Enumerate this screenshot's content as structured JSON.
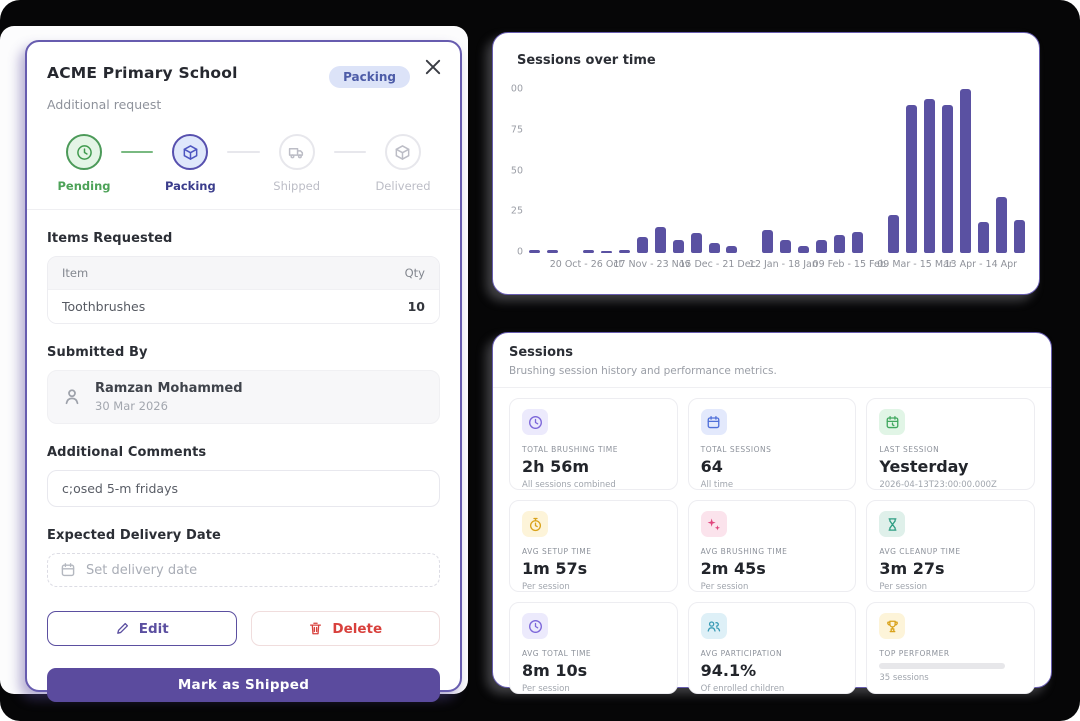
{
  "modal": {
    "title": "ACME Primary School",
    "subtitle": "Additional request",
    "status_badge": "Packing",
    "stepper": [
      {
        "label": "Pending",
        "state": "done",
        "icon": "clock-icon"
      },
      {
        "label": "Packing",
        "state": "active",
        "icon": "package-icon"
      },
      {
        "label": "Shipped",
        "state": "pending",
        "icon": "truck-icon"
      },
      {
        "label": "Delivered",
        "state": "pending",
        "icon": "package-icon"
      }
    ],
    "items_requested": {
      "heading": "Items Requested",
      "columns": [
        "Item",
        "Qty"
      ],
      "rows": [
        {
          "item": "Toothbrushes",
          "qty": "10"
        }
      ]
    },
    "submitted_by": {
      "heading": "Submitted By",
      "name": "Ramzan Mohammed",
      "date": "30 Mar 2026"
    },
    "additional_comments": {
      "heading": "Additional Comments",
      "value": "c;osed 5-m fridays"
    },
    "expected_delivery": {
      "heading": "Expected Delivery Date",
      "placeholder": "Set delivery date"
    },
    "actions": {
      "edit": "Edit",
      "delete": "Delete",
      "primary": "Mark as Shipped"
    }
  },
  "chart_data": {
    "type": "bar",
    "title": "Sessions over time",
    "ylim": [
      0,
      100
    ],
    "y_ticks": [
      "00",
      "75",
      "50",
      "25",
      "0"
    ],
    "x_tick_labels": [
      "20 Oct - 26 Oct",
      "17 Nov - 23 Nov",
      "15 Dec - 21 Dec",
      "12 Jan - 18 Jan",
      "09 Feb - 15 Feb",
      "09 Mar - 15 Mar",
      "13 Apr - 14 Apr"
    ],
    "values": [
      2,
      2,
      0,
      2,
      1,
      2,
      10,
      16,
      8,
      12,
      6,
      4,
      0,
      14,
      8,
      4,
      8,
      11,
      13,
      0,
      23,
      90,
      94,
      90,
      100,
      19,
      34,
      20
    ],
    "bar_color": "#5a51a2",
    "grid": false,
    "legend": "none"
  },
  "sessions_panel": {
    "title": "Sessions",
    "subtitle": "Brushing session history and performance metrics.",
    "metrics": [
      {
        "icon": "clock-icon",
        "chip_bg": "#eceafc",
        "chip_fg": "#7c66d9",
        "label": "TOTAL BRUSHING TIME",
        "value": "2h 56m",
        "note": "All sessions combined"
      },
      {
        "icon": "calendar-icon",
        "chip_bg": "#e3e9fc",
        "chip_fg": "#4f6fd8",
        "label": "TOTAL SESSIONS",
        "value": "64",
        "note": "All time"
      },
      {
        "icon": "calendar-clock-icon",
        "chip_bg": "#e1f5e6",
        "chip_fg": "#41a85f",
        "label": "LAST SESSION",
        "value": "Yesterday",
        "note": "2026-04-13T23:00:00.000Z"
      },
      {
        "icon": "timer-icon",
        "chip_bg": "#fdf4d9",
        "chip_fg": "#d9a21b",
        "label": "AVG SETUP TIME",
        "value": "1m 57s",
        "note": "Per session"
      },
      {
        "icon": "sparkles-icon",
        "chip_bg": "#fbe3ec",
        "chip_fg": "#e0447c",
        "label": "AVG BRUSHING TIME",
        "value": "2m 45s",
        "note": "Per session"
      },
      {
        "icon": "hourglass-icon",
        "chip_bg": "#dff0ea",
        "chip_fg": "#2f9e83",
        "label": "AVG CLEANUP TIME",
        "value": "3m 27s",
        "note": "Per session"
      },
      {
        "icon": "clock-icon",
        "chip_bg": "#eceafc",
        "chip_fg": "#7c66d9",
        "label": "AVG TOTAL TIME",
        "value": "8m 10s",
        "note": "Per session"
      },
      {
        "icon": "users-icon",
        "chip_bg": "#def0f7",
        "chip_fg": "#3a9bb5",
        "label": "AVG PARTICIPATION",
        "value": "94.1%",
        "note": "Of enrolled children"
      },
      {
        "icon": "trophy-icon",
        "chip_bg": "#fdf4d9",
        "chip_fg": "#d9a21b",
        "label": "TOP PERFORMER",
        "value": "",
        "note": "35 sessions",
        "redacted": true
      }
    ]
  },
  "colors": {
    "accent_purple": "#5b4b9e",
    "bar_purple": "#5a51a2",
    "card_border": "#675caf",
    "badge_bg": "#dce3f8",
    "badge_text": "#4d5ca8",
    "success_green": "#4da258",
    "danger_red": "#d8403c",
    "backdrop": "#060607"
  }
}
